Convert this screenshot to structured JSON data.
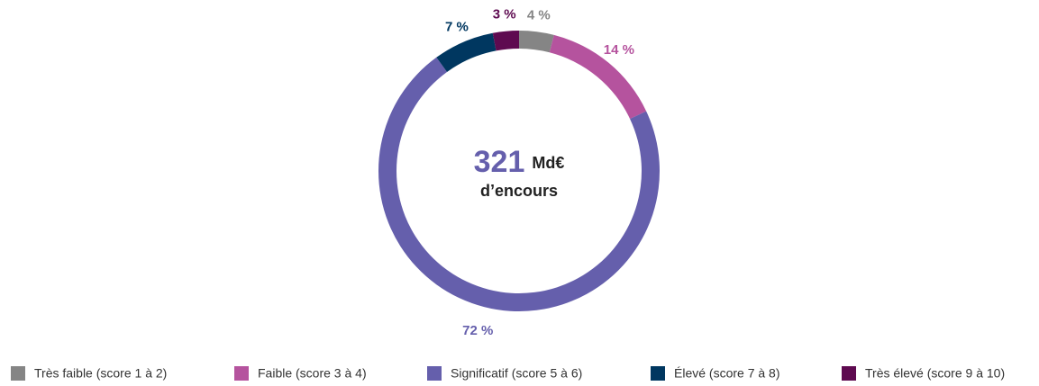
{
  "chart_data": {
    "type": "donut",
    "categories": [
      "Très faible (score 1 à 2)",
      "Faible (score 3 à 4)",
      "Significatif (score 5 à 6)",
      "Élevé (score 7 à 8)",
      "Très élevé (score 9 à 10)"
    ],
    "values": [
      4,
      14,
      72,
      7,
      3
    ],
    "value_labels": [
      "4 %",
      "14 %",
      "72 %",
      "7 %",
      "3 %"
    ],
    "colors": [
      "#858585",
      "#b5539e",
      "#655fac",
      "#003760",
      "#5e0a50"
    ],
    "center_value": 321,
    "center_unit": "Md€",
    "center_label": "d’encours",
    "legend": "bottom"
  }
}
